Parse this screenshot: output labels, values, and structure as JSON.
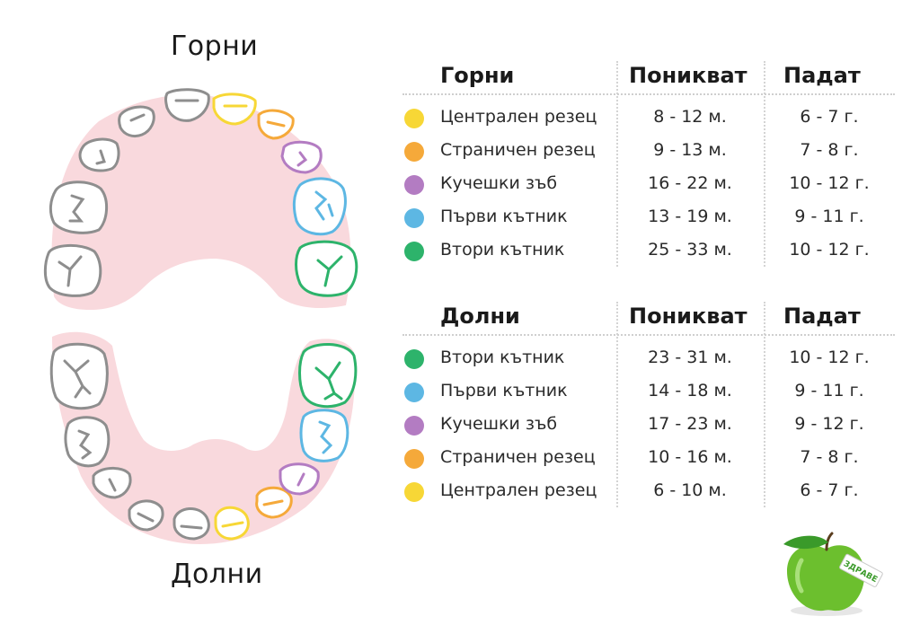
{
  "upper_title": "Горни",
  "lower_title": "Долни",
  "colors": {
    "central_incisor": "#f7d736",
    "lateral_incisor": "#f5a93a",
    "canine": "#b37cc2",
    "first_molar": "#5db7e3",
    "second_molar": "#2db36b",
    "gum": "#f9d9dd",
    "tooth_outline": "#8e8e8e"
  },
  "upper_table": {
    "header": {
      "name": "Горни",
      "erupt": "Поникват",
      "fall": "Падат"
    },
    "rows": [
      {
        "color": "#f7d736",
        "name": "Централен резец",
        "erupt": "8 - 12 м.",
        "fall": "6 - 7 г."
      },
      {
        "color": "#f5a93a",
        "name": "Страничен резец",
        "erupt": "9 - 13 м.",
        "fall": "7 - 8 г."
      },
      {
        "color": "#b37cc2",
        "name": "Кучешки зъб",
        "erupt": "16 - 22 м.",
        "fall": "10 - 12 г."
      },
      {
        "color": "#5db7e3",
        "name": "Първи кътник",
        "erupt": "13 - 19 м.",
        "fall": "9 - 11 г."
      },
      {
        "color": "#2db36b",
        "name": "Втори кътник",
        "erupt": "25 - 33 м.",
        "fall": "10 - 12 г."
      }
    ]
  },
  "lower_table": {
    "header": {
      "name": "Долни",
      "erupt": "Поникват",
      "fall": "Падат"
    },
    "rows": [
      {
        "color": "#2db36b",
        "name": "Втори кътник",
        "erupt": "23 - 31 м.",
        "fall": "10 - 12 г."
      },
      {
        "color": "#5db7e3",
        "name": "Първи кътник",
        "erupt": "14 - 18 м.",
        "fall": "9 - 11 г."
      },
      {
        "color": "#b37cc2",
        "name": "Кучешки зъб",
        "erupt": "17 - 23 м.",
        "fall": "9 - 12 г."
      },
      {
        "color": "#f5a93a",
        "name": "Страничен резец",
        "erupt": "10 - 16 м.",
        "fall": "7 - 8 г."
      },
      {
        "color": "#f7d736",
        "name": "Централен резец",
        "erupt": "6 - 10 м.",
        "fall": "6 - 7 г."
      }
    ]
  },
  "logo": {
    "label": "ЗДРАВЕ",
    "icon": "green-apple-icon"
  }
}
